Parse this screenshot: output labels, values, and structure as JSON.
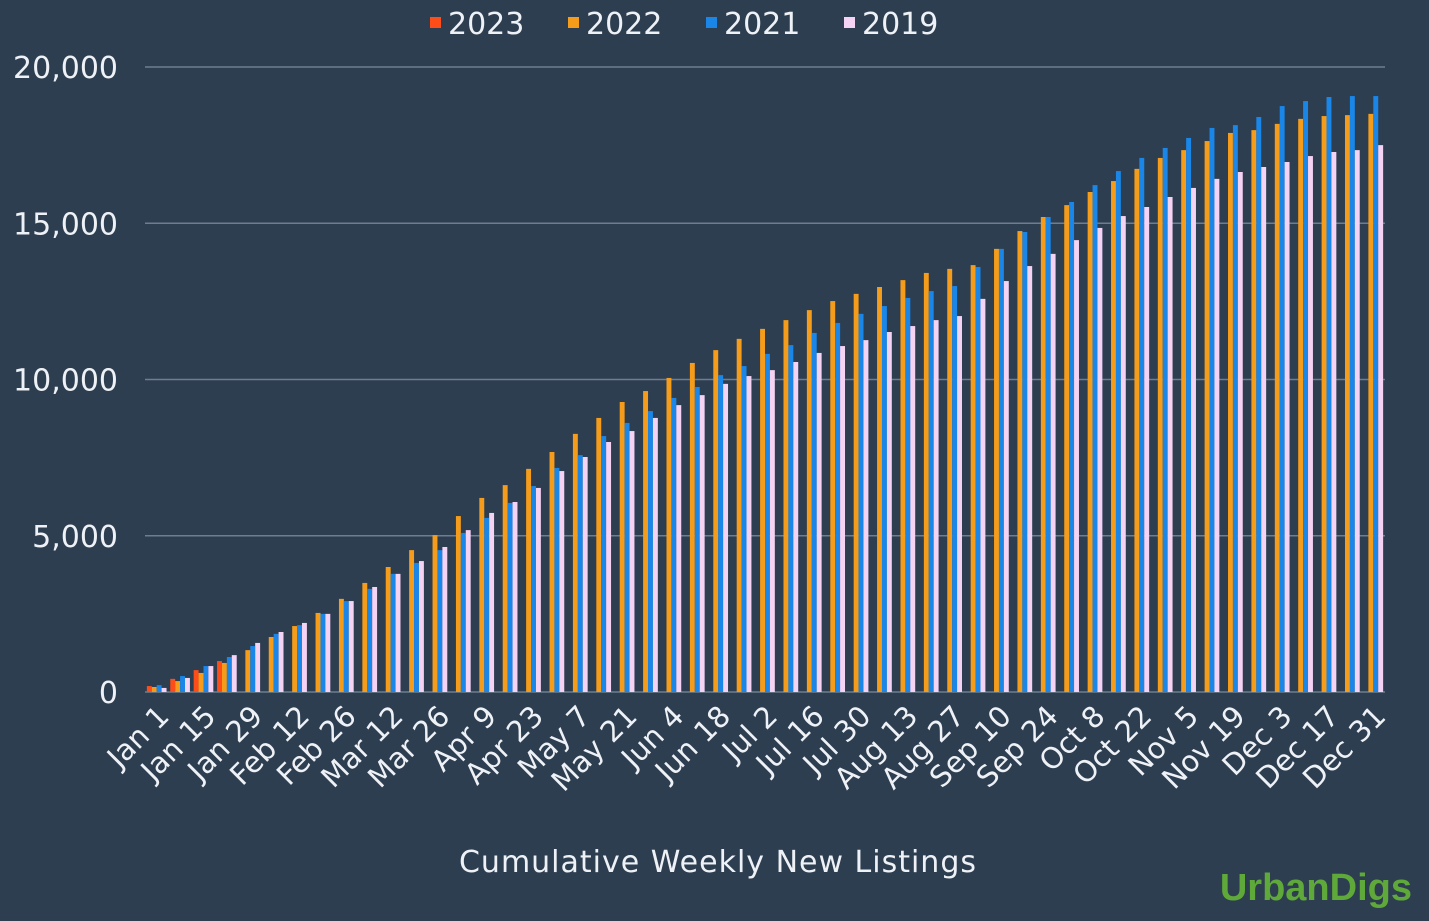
{
  "chart_data": {
    "type": "bar",
    "x_label": "Cumulative Weekly New Listings",
    "watermark": "UrbanDigs",
    "categories": [
      "Jan 1",
      null,
      "Jan 15",
      null,
      "Jan 29",
      null,
      "Feb 12",
      null,
      "Feb 26",
      null,
      "Mar 12",
      null,
      "Mar 26",
      null,
      "Apr 9",
      null,
      "Apr 23",
      null,
      "May 7",
      null,
      "May 21",
      null,
      "Jun 4",
      null,
      "Jun 18",
      null,
      "Jul 2",
      null,
      "Jul 16",
      null,
      "Jul 30",
      null,
      "Aug 13",
      null,
      "Aug 27",
      null,
      "Sep 10",
      null,
      "Sep 24",
      null,
      "Oct 8",
      null,
      "Oct 22",
      null,
      "Nov 5",
      null,
      "Nov 19",
      null,
      "Dec 3",
      null,
      "Dec 17",
      null,
      "Dec 31"
    ],
    "series": [
      {
        "name": "2023",
        "color": "#ff4d1a",
        "values": [
          190,
          420,
          700,
          990,
          null,
          null,
          null,
          null,
          null,
          null,
          null,
          null,
          null,
          null,
          null,
          null,
          null,
          null,
          null,
          null,
          null,
          null,
          null,
          null,
          null,
          null,
          null,
          null,
          null,
          null,
          null,
          null,
          null,
          null,
          null,
          null,
          null,
          null,
          null,
          null,
          null,
          null,
          null,
          null,
          null,
          null,
          null,
          null,
          null,
          null,
          null,
          null,
          null
        ]
      },
      {
        "name": "2022",
        "color": "#f59c1a",
        "values": [
          160,
          350,
          610,
          930,
          1340,
          1760,
          2110,
          2530,
          2980,
          3490,
          4000,
          4540,
          5020,
          5630,
          6210,
          6620,
          7140,
          7680,
          8260,
          8770,
          9280,
          9630,
          10050,
          10530,
          10940,
          11300,
          11620,
          11900,
          12220,
          12510,
          12740,
          12960,
          13180,
          13410,
          13540,
          13660,
          14180,
          14750,
          15200,
          15580,
          16000,
          16350,
          16740,
          17090,
          17340,
          17630,
          17890,
          17980,
          18180,
          18340,
          18430,
          18460,
          18500
        ]
      },
      {
        "name": "2021",
        "color": "#1a86e8",
        "values": [
          220,
          510,
          830,
          1120,
          1470,
          1860,
          2140,
          2500,
          2910,
          3300,
          3780,
          4130,
          4540,
          5090,
          5570,
          6050,
          6590,
          7170,
          7580,
          8190,
          8610,
          8990,
          9410,
          9760,
          10140,
          10430,
          10820,
          11100,
          11490,
          11810,
          12100,
          12350,
          12610,
          12830,
          12990,
          13600,
          14180,
          14720,
          15200,
          15680,
          16220,
          16670,
          17090,
          17410,
          17730,
          18050,
          18140,
          18400,
          18750,
          18910,
          19040,
          19070,
          19070
        ]
      },
      {
        "name": "2019",
        "color": "#f5d3f5",
        "values": [
          130,
          450,
          830,
          1180,
          1570,
          1920,
          2210,
          2500,
          2910,
          3360,
          3780,
          4190,
          4640,
          5180,
          5730,
          6080,
          6530,
          7070,
          7520,
          8000,
          8350,
          8770,
          9180,
          9500,
          9860,
          10110,
          10300,
          10560,
          10850,
          11070,
          11260,
          11520,
          11710,
          11900,
          12030,
          12580,
          13150,
          13630,
          14020,
          14460,
          14850,
          15230,
          15520,
          15840,
          16130,
          16420,
          16640,
          16800,
          16960,
          17150,
          17280,
          17340,
          17500
        ]
      }
    ],
    "ylim": [
      0,
      20000
    ],
    "yticks": [
      0,
      {
        "value": 5000,
        "label": "5,000"
      },
      {
        "value": 10000,
        "label": "10,000"
      },
      {
        "value": 15000,
        "label": "15,000"
      },
      {
        "value": 20000,
        "label": "20,000"
      }
    ],
    "grid": true,
    "legend": "top"
  }
}
